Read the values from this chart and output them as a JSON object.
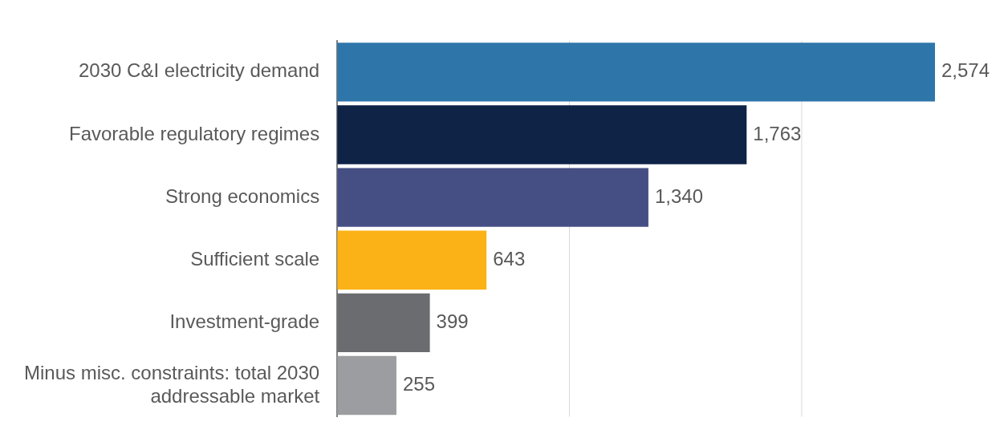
{
  "chart_data": {
    "type": "bar",
    "orientation": "horizontal",
    "categories": [
      "2030 C&I electricity demand",
      "Favorable regulatory regimes",
      "Strong economics",
      "Sufficient scale",
      "Investment-grade",
      "Minus misc. constraints: total 2030\naddressable market"
    ],
    "values": [
      2574,
      1763,
      1340,
      643,
      399,
      255
    ],
    "colors": [
      "#2e75aa",
      "#0f2347",
      "#464f84",
      "#fbb216",
      "#6b6c70",
      "#9c9da0"
    ],
    "value_labels": [
      "2,574",
      "1,763",
      "1,340",
      "643",
      "399",
      "255"
    ],
    "ref_lines": [
      {
        "axis": "x",
        "value": 1000,
        "color": "#d9d9d9"
      },
      {
        "axis": "x",
        "value": 2000,
        "color": "#d9d9d9"
      }
    ],
    "tick_labels": "y",
    "legend": false
  }
}
